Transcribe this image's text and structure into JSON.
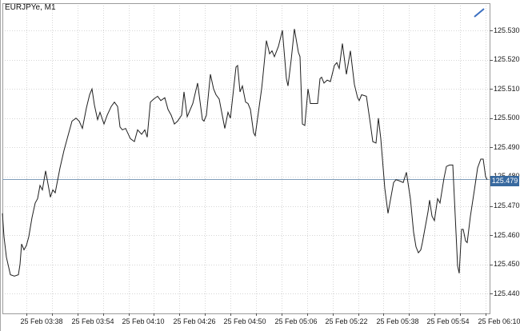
{
  "header": {
    "title": "EURJPYe, M1"
  },
  "colors": {
    "grid": "#d6d6d6",
    "series": "#1f1f1f",
    "border": "#9b9b9b",
    "outer_edge": "#a8a8a8",
    "current_price_line": "#7f9db9",
    "badge_bg": "#38699f",
    "badge_text": "#ffffff",
    "axis_text": "#1a1a1a",
    "trendline": "#3a6fc0"
  },
  "icons": [
    {
      "name": "trendline-icon",
      "meaning": "drawn trend line object"
    }
  ],
  "price_axis": {
    "labels": [
      "125.530",
      "125.520",
      "125.510",
      "125.500",
      "125.490",
      "125.480",
      "125.470",
      "125.460",
      "125.450",
      "125.440"
    ]
  },
  "time_axis": {
    "labels": [
      "25 Feb 03:38",
      "25 Feb 03:54",
      "25 Feb 04:10",
      "25 Feb 04:26",
      "25 Feb 04:50",
      "25 Feb 05:06",
      "25 Feb 05:22",
      "25 Feb 05:38",
      "25 Feb 05:54",
      "25 Feb 06:10"
    ]
  },
  "chart_data": {
    "type": "line",
    "symbol": "EURJPYe",
    "timeframe": "M1",
    "title": "EURJPYe, M1",
    "grid": "dotted",
    "legend_position": "none",
    "ylim": [
      125.4333,
      125.5393
    ],
    "y_ticks": [
      125.53,
      125.52,
      125.51,
      125.5,
      125.49,
      125.48,
      125.47,
      125.46,
      125.45,
      125.44
    ],
    "x_tick_labels": [
      "25 Feb 03:38",
      "25 Feb 03:54",
      "25 Feb 04:10",
      "25 Feb 04:26",
      "25 Feb 04:50",
      "25 Feb 05:06",
      "25 Feb 05:22",
      "25 Feb 05:38",
      "25 Feb 05:54",
      "25 Feb 06:10"
    ],
    "current_price": 125.479,
    "current_price_label": "125.479",
    "covered_price_label": "125.480",
    "series": [
      {
        "name": "EURJPYe close",
        "points_x_price": [
          [
            3,
            125.4675
          ],
          [
            5,
            125.4595
          ],
          [
            8,
            125.4525
          ],
          [
            13,
            125.4465
          ],
          [
            18,
            125.446
          ],
          [
            23,
            125.4465
          ],
          [
            25,
            125.45
          ],
          [
            27,
            125.457
          ],
          [
            30,
            125.455
          ],
          [
            33,
            125.4565
          ],
          [
            36,
            125.4595
          ],
          [
            40,
            125.466
          ],
          [
            44,
            125.471
          ],
          [
            47,
            125.4725
          ],
          [
            50,
            125.477
          ],
          [
            53,
            125.4755
          ],
          [
            57,
            125.482
          ],
          [
            63,
            125.473
          ],
          [
            66,
            125.4755
          ],
          [
            69,
            125.4745
          ],
          [
            75,
            125.483
          ],
          [
            80,
            125.489
          ],
          [
            85,
            125.494
          ],
          [
            90,
            125.499
          ],
          [
            95,
            125.5
          ],
          [
            99,
            125.499
          ],
          [
            103,
            125.4965
          ],
          [
            108,
            125.5035
          ],
          [
            112,
            125.508
          ],
          [
            115,
            125.51
          ],
          [
            118,
            125.5045
          ],
          [
            122,
            125.4995
          ],
          [
            125,
            125.502
          ],
          [
            130,
            125.498
          ],
          [
            134,
            125.501
          ],
          [
            139,
            125.504
          ],
          [
            143,
            125.5055
          ],
          [
            147,
            125.504
          ],
          [
            150,
            125.497
          ],
          [
            153,
            125.496
          ],
          [
            157,
            125.4965
          ],
          [
            163,
            125.493
          ],
          [
            168,
            125.492
          ],
          [
            172,
            125.496
          ],
          [
            177,
            125.4945
          ],
          [
            181,
            125.496
          ],
          [
            184,
            125.4935
          ],
          [
            188,
            125.5055
          ],
          [
            192,
            125.5065
          ],
          [
            197,
            125.5075
          ],
          [
            201,
            125.506
          ],
          [
            206,
            125.507
          ],
          [
            210,
            125.503
          ],
          [
            214,
            125.501
          ],
          [
            218,
            125.498
          ],
          [
            222,
            125.499
          ],
          [
            227,
            125.501
          ],
          [
            230,
            125.509
          ],
          [
            234,
            125.5005
          ],
          [
            241,
            125.505
          ],
          [
            247,
            125.512
          ],
          [
            253,
            125.4995
          ],
          [
            255,
            125.499
          ],
          [
            258,
            125.501
          ],
          [
            263,
            125.515
          ],
          [
            267,
            125.51
          ],
          [
            270,
            125.508
          ],
          [
            274,
            125.5065
          ],
          [
            281,
            125.4965
          ],
          [
            285,
            125.502
          ],
          [
            288,
            125.5
          ],
          [
            295,
            125.5175
          ],
          [
            297,
            125.518
          ],
          [
            300,
            125.509
          ],
          [
            303,
            125.511
          ],
          [
            307,
            125.5055
          ],
          [
            310,
            125.505
          ],
          [
            313,
            125.503
          ],
          [
            317,
            125.495
          ],
          [
            319,
            125.494
          ],
          [
            323,
            125.502
          ],
          [
            327,
            125.51
          ],
          [
            328,
            125.5125
          ],
          [
            333,
            125.5265
          ],
          [
            337,
            125.522
          ],
          [
            340,
            125.523
          ],
          [
            343,
            125.521
          ],
          [
            348,
            125.5245
          ],
          [
            353,
            125.53
          ],
          [
            358,
            125.5135
          ],
          [
            360,
            125.511
          ],
          [
            364,
            125.52
          ],
          [
            368,
            125.5305
          ],
          [
            373,
            125.5225
          ],
          [
            375,
            125.521
          ],
          [
            378,
            125.498
          ],
          [
            381,
            125.4975
          ],
          [
            385,
            125.51
          ],
          [
            388,
            125.505
          ],
          [
            392,
            125.505
          ],
          [
            397,
            125.505
          ],
          [
            400,
            125.5135
          ],
          [
            402,
            125.514
          ],
          [
            405,
            125.512
          ],
          [
            409,
            125.513
          ],
          [
            413,
            125.5125
          ],
          [
            418,
            125.518
          ],
          [
            421,
            125.519
          ],
          [
            424,
            125.517
          ],
          [
            428,
            125.5255
          ],
          [
            433,
            125.515
          ],
          [
            438,
            125.523
          ],
          [
            443,
            125.5115
          ],
          [
            447,
            125.507
          ],
          [
            449,
            125.506
          ],
          [
            452,
            125.508
          ],
          [
            458,
            125.5075
          ],
          [
            463,
            125.498
          ],
          [
            466,
            125.492
          ],
          [
            470,
            125.4915
          ],
          [
            473,
            125.5
          ],
          [
            476,
            125.493
          ],
          [
            481,
            125.476
          ],
          [
            485,
            125.4675
          ],
          [
            492,
            125.478
          ],
          [
            495,
            125.479
          ],
          [
            500,
            125.4785
          ],
          [
            504,
            125.478
          ],
          [
            508,
            125.4815
          ],
          [
            513,
            125.4725
          ],
          [
            517,
            125.461
          ],
          [
            520,
            125.456
          ],
          [
            523,
            125.454
          ],
          [
            526,
            125.455
          ],
          [
            528,
            125.4575
          ],
          [
            535,
            125.468
          ],
          [
            537,
            125.472
          ],
          [
            540,
            125.4665
          ],
          [
            543,
            125.465
          ],
          [
            547,
            125.4725
          ],
          [
            550,
            125.471
          ],
          [
            555,
            125.4795
          ],
          [
            558,
            125.4835
          ],
          [
            562,
            125.484
          ],
          [
            566,
            125.484
          ],
          [
            572,
            125.4495
          ],
          [
            574,
            125.447
          ],
          [
            577,
            125.462
          ],
          [
            579,
            125.462
          ],
          [
            582,
            125.458
          ],
          [
            584,
            125.4575
          ],
          [
            588,
            125.4665
          ],
          [
            593,
            125.4755
          ],
          [
            597,
            125.483
          ],
          [
            601,
            125.486
          ],
          [
            604,
            125.486
          ],
          [
            607,
            125.48
          ],
          [
            609,
            125.479
          ]
        ]
      }
    ]
  }
}
